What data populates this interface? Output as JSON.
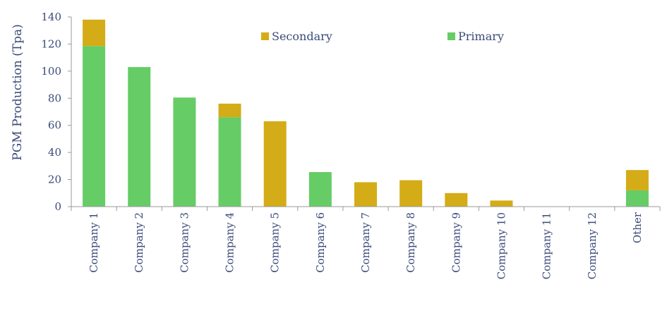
{
  "chart_data": {
    "type": "bar",
    "stacked": true,
    "ylabel": "PGM Production (Tpa)",
    "xlabel": "",
    "ylim": [
      0,
      140
    ],
    "yticks": [
      0,
      20,
      40,
      60,
      80,
      100,
      120,
      140
    ],
    "grid": false,
    "legend_position": "top-center",
    "categories": [
      "Company 1",
      "Company 2",
      "Company 3",
      "Company 4",
      "Company 5",
      "Company 6",
      "Company 7",
      "Company 8",
      "Company 9",
      "Company 10",
      "Company 11",
      "Company 12",
      "Other"
    ],
    "series": [
      {
        "name": "Primary",
        "color": "#66cc66",
        "values": [
          118.5,
          103,
          80.5,
          66,
          0,
          25.5,
          0,
          0,
          0,
          0,
          0,
          0,
          12
        ]
      },
      {
        "name": "Secondary",
        "color": "#d4ac17",
        "values": [
          19.5,
          0,
          0,
          10,
          63,
          0,
          18,
          19.5,
          10,
          4.5,
          0,
          0,
          15
        ]
      }
    ],
    "legend_order": [
      "Secondary",
      "Primary"
    ]
  }
}
